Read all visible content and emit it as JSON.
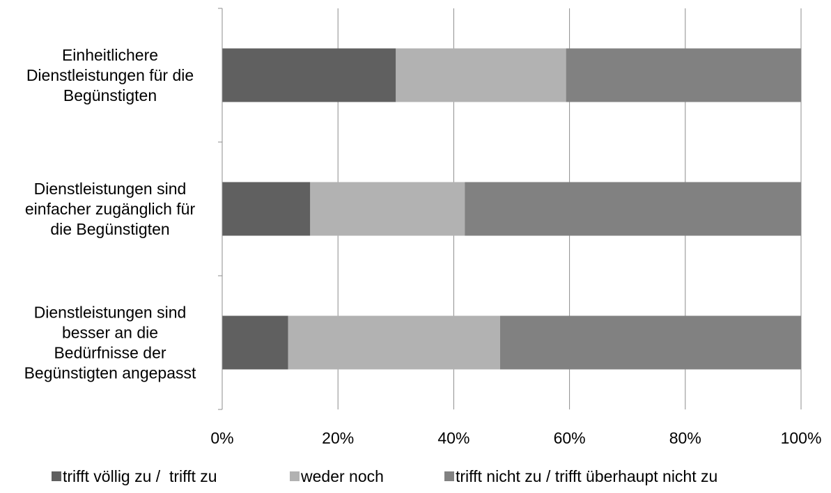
{
  "chart_data": {
    "type": "bar",
    "orientation": "horizontal",
    "stacked": "percent",
    "categories": [
      "Einheitlichere Dienstleistungen für die Begünstigten",
      "Dienstleistungen sind einfacher zugänglich für die Begünstigten",
      "Dienstleistungen sind besser an die Bedürfnisse der Begünstigten angepasst"
    ],
    "category_lines": [
      [
        "Einheitlichere",
        "Dienstleistungen für die",
        "Begünstigten"
      ],
      [
        "Dienstleistungen sind",
        "einfacher zugänglich für",
        "die Begünstigten"
      ],
      [
        "Dienstleistungen sind",
        "besser an die",
        "Bedürfnisse der",
        "Begünstigten angepasst"
      ]
    ],
    "series": [
      {
        "name": "trifft völlig zu /  trifft zu",
        "color": "#606060",
        "values": [
          30,
          15.2,
          11.4
        ]
      },
      {
        "name": "weder noch",
        "color": "#b2b2b2",
        "values": [
          29.4,
          26.7,
          36.6
        ]
      },
      {
        "name": "trifft nicht zu / trifft überhaupt nicht zu",
        "color": "#818181",
        "values": [
          40.6,
          58.1,
          52
        ]
      }
    ],
    "xlim": [
      0,
      100
    ],
    "xticks": [
      "0%",
      "20%",
      "40%",
      "60%",
      "80%",
      "100%"
    ],
    "grid": "vertical",
    "legend": "bottom",
    "title": "",
    "xlabel": "",
    "ylabel": ""
  }
}
